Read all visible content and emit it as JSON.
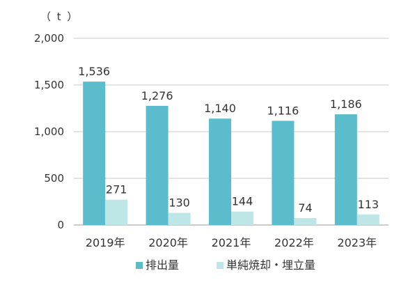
{
  "chart_data": {
    "type": "bar",
    "unit_label": "（ t ）",
    "categories": [
      "2019年",
      "2020年",
      "2021年",
      "2022年",
      "2023年"
    ],
    "series": [
      {
        "name": "排出量",
        "color": "#5bbccb",
        "values": [
          1536,
          1276,
          1140,
          1116,
          1186
        ],
        "labels": [
          "1,536",
          "1,276",
          "1,140",
          "1,116",
          "1,186"
        ]
      },
      {
        "name": "単純焼却・埋立量",
        "color": "#bfe6e7",
        "values": [
          271,
          130,
          144,
          74,
          113
        ],
        "labels": [
          "271",
          "130",
          "144",
          "74",
          "113"
        ]
      }
    ],
    "ylim": [
      0,
      2000
    ],
    "yticks": [
      0,
      500,
      1000,
      1500,
      2000
    ],
    "ytick_labels": [
      "0",
      "500",
      "1,000",
      "1,500",
      "2,000"
    ],
    "grid": true,
    "legend_position": "bottom"
  }
}
